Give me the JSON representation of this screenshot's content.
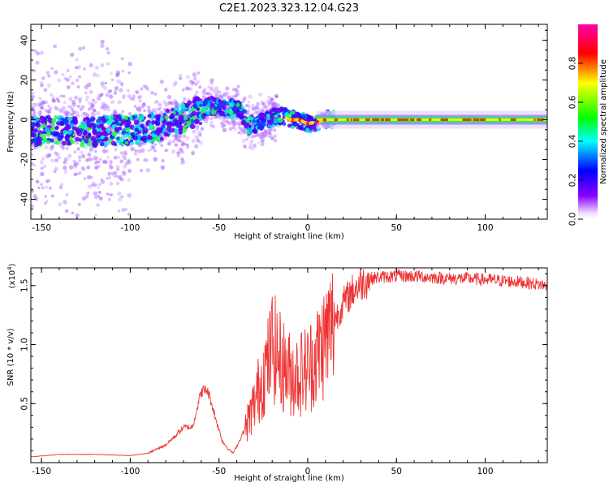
{
  "title": "C2E1.2023.323.12.04.G23",
  "chart_data": [
    {
      "type": "heatmap",
      "xlabel": "Height of straight line (km)",
      "ylabel": "Frequency (Hz)",
      "xlim": [
        -156,
        135
      ],
      "ylim": [
        -50,
        48
      ],
      "xticks": [
        -150,
        -100,
        -50,
        0,
        50,
        100
      ],
      "yticks": [
        -40,
        -20,
        0,
        20,
        40
      ],
      "colorbar": {
        "label": "Normalized spectral amplitude",
        "ticks": [
          "0.0",
          "0.2",
          "0.4",
          "0.6",
          "0.8"
        ],
        "range": [
          0,
          1
        ],
        "colors": [
          "#ffffff",
          "#8800ff",
          "#0000ff",
          "#00ffff",
          "#00ff00",
          "#ffff00",
          "#ff0000",
          "#ff00aa"
        ]
      },
      "ridge": {
        "x": [
          -155,
          -140,
          -120,
          -100,
          -85,
          -75,
          -65,
          -55,
          -45,
          -38,
          -34,
          -30,
          -25,
          -20,
          -15,
          -10,
          -5,
          0,
          5,
          10,
          20,
          50,
          100,
          135
        ],
        "freq": [
          -6,
          -5,
          -6,
          -5,
          -4,
          -1,
          3,
          7,
          6,
          5,
          -3,
          -2,
          0,
          1,
          2,
          0,
          0,
          -2,
          -1,
          0,
          0,
          0,
          0,
          0
        ]
      }
    },
    {
      "type": "line",
      "xlabel": "Height of straight line (km)",
      "ylabel": "SNR (10 * v/v)",
      "y_multiplier": "(x10",
      "y_multiplier_exp": "4",
      "y_multiplier_close": ")",
      "xlim": [
        -156,
        135
      ],
      "ylim": [
        0,
        1.65
      ],
      "xticks": [
        -150,
        -100,
        -50,
        0,
        50,
        100
      ],
      "yticks": [
        0.5,
        1.0,
        1.5
      ],
      "ytick_labels": [
        "0.5",
        "1.0",
        "1.5"
      ],
      "color": "#ee3333",
      "x": [
        -155,
        -140,
        -120,
        -100,
        -90,
        -80,
        -75,
        -70,
        -65,
        -60,
        -57,
        -55,
        -52,
        -48,
        -45,
        -42,
        -38,
        -35,
        -30,
        -25,
        -22,
        -20,
        -15,
        -10,
        -5,
        0,
        5,
        10,
        15,
        20,
        25,
        30,
        35,
        40,
        50,
        60,
        70,
        80,
        90,
        100,
        110,
        120,
        135
      ],
      "values": [
        0.05,
        0.07,
        0.07,
        0.06,
        0.08,
        0.15,
        0.22,
        0.3,
        0.3,
        0.6,
        0.62,
        0.55,
        0.38,
        0.18,
        0.12,
        0.08,
        0.2,
        0.3,
        0.5,
        0.75,
        0.85,
        1.0,
        0.85,
        0.75,
        0.75,
        0.8,
        0.9,
        1.05,
        1.2,
        1.35,
        1.45,
        1.52,
        1.56,
        1.57,
        1.58,
        1.58,
        1.57,
        1.56,
        1.56,
        1.55,
        1.54,
        1.53,
        1.5
      ]
    }
  ]
}
